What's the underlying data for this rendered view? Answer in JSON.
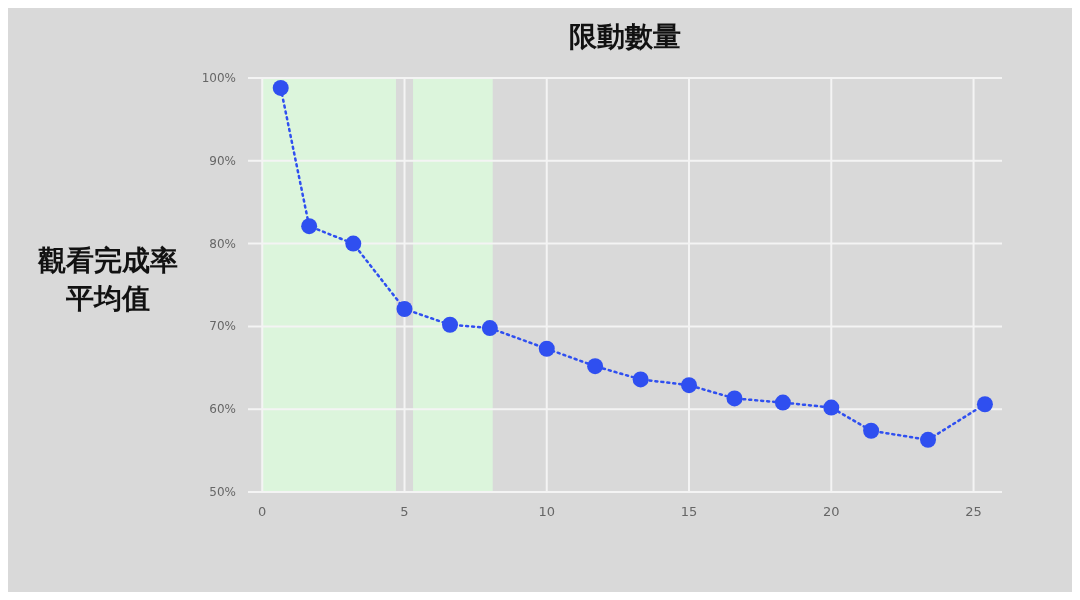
{
  "chart_data": {
    "type": "line",
    "title": "限動數量",
    "ylabel": "觀看完成率平均值",
    "x": [
      0.65,
      1.65,
      3.2,
      5,
      6.6,
      8,
      10,
      11.7,
      13.3,
      15,
      16.6,
      18.3,
      20,
      21.4,
      23.4,
      25.4
    ],
    "series": [
      {
        "color": "#2f4ff0",
        "values": [
          98.8,
          82.1,
          80,
          72.1,
          70.2,
          69.8,
          67.3,
          65.2,
          63.6,
          62.9,
          61.3,
          60.8,
          60.2,
          57.4,
          56.3,
          60.6
        ]
      }
    ],
    "xlim": [
      -0.5,
      26
    ],
    "xticks": [
      0,
      5,
      10,
      15,
      20,
      25
    ],
    "ylim": [
      50,
      100
    ],
    "yticks": [
      {
        "value": 50,
        "label": "50%"
      },
      {
        "value": 60,
        "label": "60%"
      },
      {
        "value": 70,
        "label": "70%"
      },
      {
        "value": 80,
        "label": "80%"
      },
      {
        "value": 90,
        "label": "90%"
      },
      {
        "value": 100,
        "label": "100%"
      }
    ],
    "bands": [
      {
        "axis": "x",
        "from": 0,
        "to": 4.7,
        "color": "#dcf5dc"
      },
      {
        "axis": "x",
        "from": 5.3,
        "to": 8.1,
        "color": "#dcf5dc"
      }
    ],
    "grid": true,
    "marker": "circle",
    "line_style": "dotted"
  }
}
